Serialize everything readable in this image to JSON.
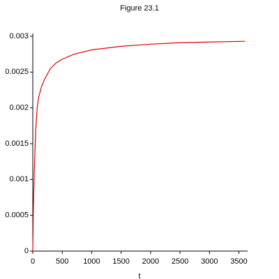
{
  "chart_data": {
    "type": "line",
    "title": "Figure 23.1",
    "x_label": "t",
    "x": [
      0,
      10,
      25,
      50,
      75,
      100,
      150,
      200,
      300,
      400,
      500,
      700,
      1000,
      1500,
      2000,
      2500,
      3000,
      3600
    ],
    "series": [
      {
        "color": "#e00000",
        "values": [
          0,
          0.0006,
          0.0011,
          0.0017,
          0.002,
          0.00215,
          0.0023,
          0.0024,
          0.00255,
          0.00263,
          0.00268,
          0.00275,
          0.00281,
          0.00286,
          0.00289,
          0.00291,
          0.00292,
          0.00293
        ]
      }
    ],
    "xlim": [
      0,
      3600
    ],
    "ylim": [
      0,
      0.003
    ],
    "xticks": [
      0,
      500,
      1000,
      1500,
      2000,
      2500,
      3000,
      3500
    ],
    "yticks": [
      0,
      0.0005,
      0.001,
      0.0015,
      0.002,
      0.0025,
      0.003
    ]
  }
}
